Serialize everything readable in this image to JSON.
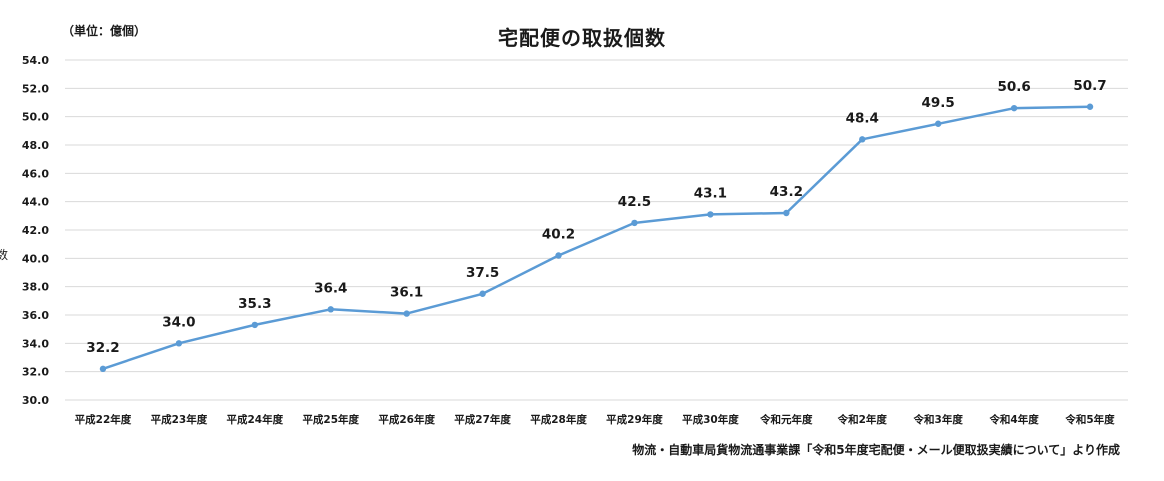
{
  "chart_data": {
    "type": "line",
    "title": "宅配便の取扱個数",
    "unit_label": "（単位：億個）",
    "source": "物流・自動車局貨物流通事業課「令和5年度宅配便・メール便取扱実績について」より作成",
    "categories": [
      "平成22年度",
      "平成23年度",
      "平成24年度",
      "平成25年度",
      "平成26年度",
      "平成27年度",
      "平成28年度",
      "平成29年度",
      "平成30年度",
      "令和元年度",
      "令和2年度",
      "令和3年度",
      "令和4年度",
      "令和5年度"
    ],
    "series": [
      {
        "values": [
          32.2,
          34.0,
          35.3,
          36.4,
          36.1,
          37.5,
          40.2,
          42.5,
          43.1,
          43.2,
          48.4,
          49.5,
          50.6,
          50.7
        ]
      }
    ],
    "ylim": [
      30,
      54
    ],
    "yticks": [
      "30.0",
      "32.0",
      "34.0",
      "36.0",
      "38.0",
      "40.0",
      "42.0",
      "44.0",
      "46.0",
      "48.0",
      "50.0",
      "52.0",
      "54.0"
    ],
    "data_labels": [
      "32.2",
      "34.0",
      "35.3",
      "36.4",
      "36.1",
      "37.5",
      "40.2",
      "42.5",
      "43.1",
      "43.2",
      "48.4",
      "49.5",
      "50.6",
      "50.7"
    ],
    "grid": true,
    "line_color": "#5b9bd5",
    "grid_color": "#d9d9d9",
    "stray_glyph": "数"
  }
}
